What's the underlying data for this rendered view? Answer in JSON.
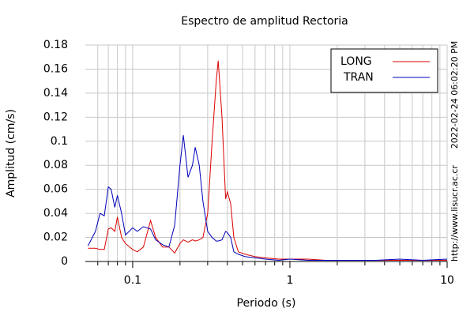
{
  "chart_data": {
    "type": "line",
    "title": "Espectro de amplitud Rectoria",
    "x_label": "Periodo (s)",
    "y_label": "Amplitud (cm/s)",
    "timestamp": "2022-02-24 06:02:20 PM",
    "source": "http://www.lisucr.ac.cr",
    "log_x": true,
    "grid": true,
    "legend_position": "upper right",
    "xlim": [
      0.05,
      10
    ],
    "ylim": [
      0,
      0.18
    ],
    "xticks": [
      0.1,
      1,
      10
    ],
    "xminorticks": [
      0.06,
      0.07,
      0.08,
      0.09,
      0.2,
      0.3,
      0.4,
      0.5,
      0.6,
      0.7,
      0.8,
      0.9,
      2,
      3,
      4,
      5,
      6,
      7,
      8,
      9
    ],
    "yticks": [
      0,
      0.02,
      0.04,
      0.06,
      0.08,
      0.1,
      0.12,
      0.14,
      0.16,
      0.18
    ],
    "x": [
      0.052,
      0.058,
      0.062,
      0.066,
      0.07,
      0.073,
      0.077,
      0.08,
      0.085,
      0.09,
      0.1,
      0.107,
      0.117,
      0.13,
      0.14,
      0.155,
      0.17,
      0.185,
      0.2,
      0.21,
      0.225,
      0.24,
      0.25,
      0.265,
      0.28,
      0.3,
      0.32,
      0.34,
      0.35,
      0.37,
      0.39,
      0.4,
      0.42,
      0.44,
      0.47,
      0.52,
      0.6,
      0.7,
      0.85,
      1,
      1.3,
      1.7,
      2.5,
      3.5,
      5,
      7,
      10
    ],
    "series": [
      {
        "name": "LONG",
        "color": "#dd0000",
        "values": [
          0.011,
          0.011,
          0.01,
          0.01,
          0.027,
          0.028,
          0.025,
          0.037,
          0.02,
          0.015,
          0.01,
          0.008,
          0.012,
          0.034,
          0.02,
          0.012,
          0.012,
          0.007,
          0.015,
          0.018,
          0.016,
          0.018,
          0.017,
          0.018,
          0.02,
          0.04,
          0.1,
          0.15,
          0.167,
          0.12,
          0.052,
          0.058,
          0.048,
          0.02,
          0.008,
          0.006,
          0.004,
          0.003,
          0.002,
          0.002,
          0.002,
          0.001,
          0.001,
          0.001,
          0.001,
          0.001,
          0.001
        ]
      },
      {
        "name": "TRAN",
        "color": "#0000bb",
        "values": [
          0.013,
          0.025,
          0.04,
          0.038,
          0.062,
          0.06,
          0.045,
          0.055,
          0.04,
          0.022,
          0.028,
          0.025,
          0.029,
          0.027,
          0.018,
          0.014,
          0.012,
          0.03,
          0.08,
          0.105,
          0.07,
          0.08,
          0.095,
          0.08,
          0.05,
          0.025,
          0.02,
          0.017,
          0.017,
          0.018,
          0.025,
          0.024,
          0.02,
          0.008,
          0.006,
          0.004,
          0.003,
          0.002,
          0.001,
          0.002,
          0.001,
          0.001,
          0.001,
          0.001,
          0.002,
          0.001,
          0.002
        ]
      }
    ]
  }
}
